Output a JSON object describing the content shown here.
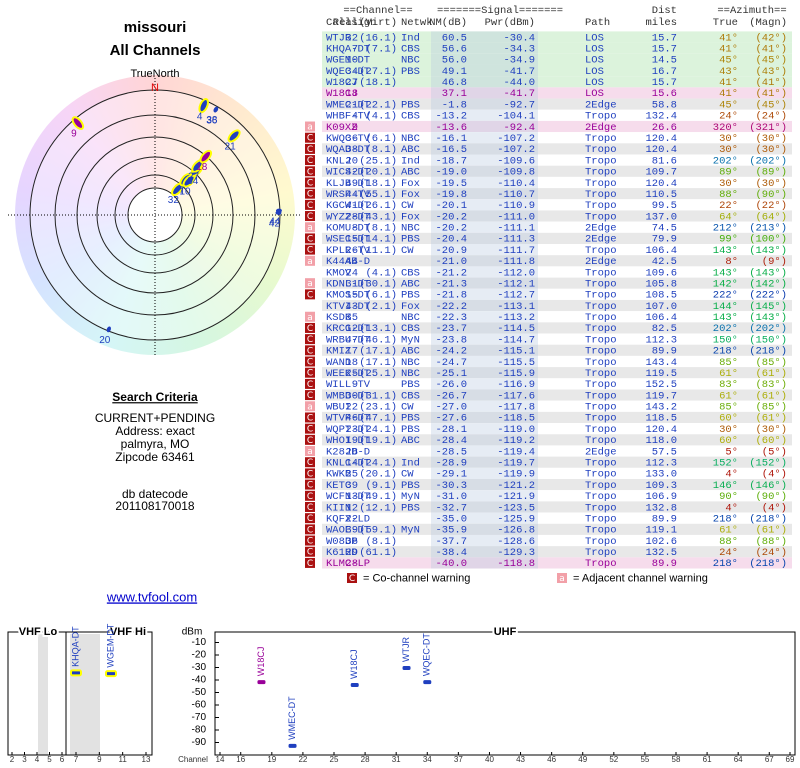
{
  "header": {
    "title": "missouri",
    "subtitle": "All Channels"
  },
  "search": {
    "title": "Search Criteria",
    "lines": [
      "CURRENT+PENDING",
      "Address: exact",
      "palmyra, MO",
      "Zipcode 63461"
    ],
    "datecode_label": "db datecode",
    "datecode": "201108170018"
  },
  "link": "www.tvfool.com",
  "table": {
    "group_headers": {
      "channel": "==Channel==",
      "signal": "=======Signal=======",
      "dist": "Dist",
      "azimuth": "==Azimuth=="
    },
    "columns": [
      "Callsign",
      "Real",
      "(Virt)",
      "Netwk",
      "NM(dB)",
      "Pwr(dBm)",
      "Path",
      "miles",
      "True",
      "(Magn)"
    ],
    "color": "#1f3fbf",
    "rows": [
      {
        "callsign": "WTJR",
        "real": "32",
        "virt": "(16.1)",
        "netwk": "Ind",
        "nm": "60.5",
        "pwr": "-30.4",
        "path": "LOS",
        "dist": "15.7",
        "true": "41°",
        "magn": "(42°)"
      },
      {
        "callsign": "KHQA-DT",
        "real": "7",
        "virt": "(7.1)",
        "netwk": "CBS",
        "nm": "56.6",
        "pwr": "-34.3",
        "path": "LOS",
        "dist": "15.7",
        "true": "41°",
        "magn": "(41°)"
      },
      {
        "callsign": "WGEM-DT",
        "real": "10",
        "netwk": "NBC",
        "nm": "56.0",
        "pwr": "-34.9",
        "path": "LOS",
        "dist": "14.5",
        "true": "45°",
        "magn": "(45°)"
      },
      {
        "callsign": "WQEC-DT",
        "real": "34",
        "virt": "(27.1)",
        "netwk": "PBS",
        "nm": "49.1",
        "pwr": "-41.7",
        "path": "LOS",
        "dist": "16.7",
        "true": "43°",
        "magn": "(43°)"
      },
      {
        "callsign": "W18CJ",
        "real": "27",
        "virt": "(18.1)",
        "nm": "46.8",
        "pwr": "-44.0",
        "path": "LOS",
        "dist": "15.7",
        "true": "41°",
        "magn": "(41°)"
      },
      {
        "callsign": "W18CJ",
        "real": "18",
        "nm": "37.1",
        "pwr": "-41.7",
        "path": "LOS",
        "dist": "15.6",
        "true": "41°",
        "magn": "(41°)",
        "color": "#990099"
      },
      {
        "callsign": "WMEC-DT",
        "real": "21",
        "virt": "(22.1)",
        "netwk": "PBS",
        "nm": "-1.8",
        "pwr": "-92.7",
        "path": "2Edge",
        "dist": "58.8",
        "true": "45°",
        "magn": "(45°)"
      },
      {
        "callsign": "WHBF-TV",
        "real": "4",
        "virt": "(4.1)",
        "netwk": "CBS",
        "nm": "-13.2",
        "pwr": "-104.1",
        "path": "Tropo",
        "dist": "132.4",
        "true": "24°",
        "magn": "(24°)"
      },
      {
        "callsign": "K09XZ",
        "real": "9",
        "nm": "-13.6",
        "pwr": "-92.4",
        "path": "2Edge",
        "dist": "26.6",
        "true": "320°",
        "magn": "(321°)",
        "warn": "a",
        "color": "#990099"
      },
      {
        "callsign": "KWQC-TV",
        "real": "36",
        "virt": "(6.1)",
        "netwk": "NBC",
        "nm": "-16.1",
        "pwr": "-107.2",
        "path": "Tropo",
        "dist": "120.4",
        "true": "30°",
        "magn": "(30°)",
        "warn": "C"
      },
      {
        "callsign": "WQAD-DT",
        "real": "38",
        "virt": "(8.1)",
        "netwk": "ABC",
        "nm": "-16.5",
        "pwr": "-107.2",
        "path": "Tropo",
        "dist": "120.4",
        "true": "30°",
        "magn": "(30°)",
        "warn": "C"
      },
      {
        "callsign": "KNLJ",
        "real": "20",
        "virt": "(25.1)",
        "netwk": "Ind",
        "nm": "-18.7",
        "pwr": "-109.6",
        "path": "Tropo",
        "dist": "81.6",
        "true": "202°",
        "magn": "(202°)",
        "warn": "C"
      },
      {
        "callsign": "WICS-DT",
        "real": "42",
        "virt": "(20.1)",
        "netwk": "ABC",
        "nm": "-19.0",
        "pwr": "-109.8",
        "path": "Tropo",
        "dist": "109.7",
        "true": "89°",
        "magn": "(89°)",
        "warn": "C"
      },
      {
        "callsign": "KLJB-DT",
        "real": "49",
        "virt": "(18.1)",
        "netwk": "Fox",
        "nm": "-19.5",
        "pwr": "-110.4",
        "path": "Tropo",
        "dist": "120.4",
        "true": "30°",
        "magn": "(30°)",
        "warn": "C"
      },
      {
        "callsign": "WRSP-TV",
        "real": "44",
        "virt": "(55.1)",
        "netwk": "Fox",
        "nm": "-19.8",
        "pwr": "-110.7",
        "path": "Tropo",
        "dist": "110.5",
        "true": "88°",
        "magn": "(90°)",
        "warn": "C"
      },
      {
        "callsign": "KGCW-DT",
        "real": "41",
        "virt": "(26.1)",
        "netwk": "CW",
        "nm": "-20.1",
        "pwr": "-110.9",
        "path": "Tropo",
        "dist": "99.5",
        "true": "22°",
        "magn": "(22°)",
        "warn": "C"
      },
      {
        "callsign": "WYZZ-DT",
        "real": "28",
        "virt": "(43.1)",
        "netwk": "Fox",
        "nm": "-20.2",
        "pwr": "-111.0",
        "path": "Tropo",
        "dist": "137.0",
        "true": "64°",
        "magn": "(64°)",
        "warn": "C"
      },
      {
        "callsign": "KOMU-DT",
        "real": "8",
        "virt": "(8.1)",
        "netwk": "NBC",
        "nm": "-20.2",
        "pwr": "-111.1",
        "path": "2Edge",
        "dist": "74.5",
        "true": "212°",
        "magn": "(213°)",
        "warn": "a"
      },
      {
        "callsign": "WSEC-DT",
        "real": "15",
        "virt": "(14.1)",
        "netwk": "PBS",
        "nm": "-20.4",
        "pwr": "-111.3",
        "path": "2Edge",
        "dist": "79.9",
        "true": "99°",
        "magn": "(100°)",
        "warn": "C"
      },
      {
        "callsign": "KPLR-TV",
        "real": "26",
        "virt": "(11.1)",
        "netwk": "CW",
        "nm": "-20.9",
        "pwr": "-111.7",
        "path": "Tropo",
        "dist": "106.4",
        "true": "143°",
        "magn": "(143°)",
        "warn": "C"
      },
      {
        "callsign": "K44AB-D",
        "real": "44",
        "nm": "-21.0",
        "pwr": "-111.8",
        "path": "2Edge",
        "dist": "42.5",
        "true": "8°",
        "magn": "(9°)",
        "warn": "a"
      },
      {
        "callsign": "KMOV",
        "real": "24",
        "virt": "(4.1)",
        "netwk": "CBS",
        "nm": "-21.2",
        "pwr": "-112.0",
        "path": "Tropo",
        "dist": "109.6",
        "true": "143°",
        "magn": "(143°)"
      },
      {
        "callsign": "KDNL-DT",
        "real": "31",
        "virt": "(30.1)",
        "netwk": "ABC",
        "nm": "-21.3",
        "pwr": "-112.1",
        "path": "Tropo",
        "dist": "105.8",
        "true": "142°",
        "magn": "(142°)",
        "warn": "a"
      },
      {
        "callsign": "KMOS-DT",
        "real": "15",
        "virt": "(6.1)",
        "netwk": "PBS",
        "nm": "-21.8",
        "pwr": "-112.7",
        "path": "Tropo",
        "dist": "108.5",
        "true": "222°",
        "magn": "(222°)",
        "warn": "C"
      },
      {
        "callsign": "KTVI-DT",
        "real": "43",
        "virt": "(2.1)",
        "netwk": "Fox",
        "nm": "-22.2",
        "pwr": "-113.1",
        "path": "Tropo",
        "dist": "107.0",
        "true": "144°",
        "magn": "(145°)"
      },
      {
        "callsign": "KSDK",
        "real": "35",
        "netwk": "NBC",
        "nm": "-22.3",
        "pwr": "-113.2",
        "path": "Tropo",
        "dist": "106.4",
        "true": "143°",
        "magn": "(143°)",
        "warn": "a"
      },
      {
        "callsign": "KRCG-DT",
        "real": "12",
        "virt": "(13.1)",
        "netwk": "CBS",
        "nm": "-23.7",
        "pwr": "-114.5",
        "path": "Tropo",
        "dist": "82.5",
        "true": "202°",
        "magn": "(202°)",
        "warn": "C"
      },
      {
        "callsign": "WRBU-DT",
        "real": "47",
        "virt": "(46.1)",
        "netwk": "MyN",
        "nm": "-23.8",
        "pwr": "-114.7",
        "path": "Tropo",
        "dist": "112.3",
        "true": "150°",
        "magn": "(150°)",
        "warn": "C"
      },
      {
        "callsign": "KMIZ",
        "real": "17",
        "virt": "(17.1)",
        "netwk": "ABC",
        "nm": "-24.2",
        "pwr": "-115.1",
        "path": "Tropo",
        "dist": "89.9",
        "true": "218°",
        "magn": "(218°)",
        "warn": "C"
      },
      {
        "callsign": "WAND",
        "real": "18",
        "virt": "(17.1)",
        "netwk": "NBC",
        "nm": "-24.7",
        "pwr": "-115.5",
        "path": "Tropo",
        "dist": "143.4",
        "true": "85°",
        "magn": "(85°)",
        "warn": "C"
      },
      {
        "callsign": "WEEK-DT",
        "real": "25",
        "virt": "(25.1)",
        "netwk": "NBC",
        "nm": "-25.1",
        "pwr": "-115.9",
        "path": "Tropo",
        "dist": "119.5",
        "true": "61°",
        "magn": "(61°)",
        "warn": "C"
      },
      {
        "callsign": "WILL-TV",
        "real": "9",
        "netwk": "PBS",
        "nm": "-26.0",
        "pwr": "-116.9",
        "path": "Tropo",
        "dist": "152.5",
        "true": "83°",
        "magn": "(83°)",
        "warn": "C"
      },
      {
        "callsign": "WMBD-DT",
        "real": "30",
        "virt": "(31.1)",
        "netwk": "CBS",
        "nm": "-26.7",
        "pwr": "-117.6",
        "path": "Tropo",
        "dist": "119.7",
        "true": "61°",
        "magn": "(61°)",
        "warn": "C"
      },
      {
        "callsign": "WBUI",
        "real": "22",
        "virt": "(23.1)",
        "netwk": "CW",
        "nm": "-27.0",
        "pwr": "-117.8",
        "path": "Tropo",
        "dist": "143.2",
        "true": "85°",
        "magn": "(85°)",
        "warn": "a"
      },
      {
        "callsign": "WTVP-DT",
        "real": "46",
        "virt": "(47.1)",
        "netwk": "PBS",
        "nm": "-27.6",
        "pwr": "-118.5",
        "path": "Tropo",
        "dist": "118.5",
        "true": "60°",
        "magn": "(61°)",
        "warn": "C"
      },
      {
        "callsign": "WQPT-DT",
        "real": "23",
        "virt": "(24.1)",
        "netwk": "PBS",
        "nm": "-28.1",
        "pwr": "-119.0",
        "path": "Tropo",
        "dist": "120.4",
        "true": "30°",
        "magn": "(30°)",
        "warn": "C"
      },
      {
        "callsign": "WHOI-DT",
        "real": "19",
        "virt": "(19.1)",
        "netwk": "ABC",
        "nm": "-28.4",
        "pwr": "-119.2",
        "path": "Tropo",
        "dist": "118.0",
        "true": "60°",
        "magn": "(60°)",
        "warn": "C"
      },
      {
        "callsign": "K28JD-D",
        "real": "28",
        "nm": "-28.5",
        "pwr": "-119.4",
        "path": "2Edge",
        "dist": "57.5",
        "true": "5°",
        "magn": "(5°)",
        "warn": "a"
      },
      {
        "callsign": "KNLC-DT",
        "real": "14",
        "virt": "(24.1)",
        "netwk": "Ind",
        "nm": "-28.9",
        "pwr": "-119.7",
        "path": "Tropo",
        "dist": "112.3",
        "true": "152°",
        "magn": "(152°)",
        "warn": "C"
      },
      {
        "callsign": "KWKB",
        "real": "25",
        "virt": "(20.1)",
        "netwk": "CW",
        "nm": "-29.1",
        "pwr": "-119.9",
        "path": "Tropo",
        "dist": "133.0",
        "true": "4°",
        "magn": "(4°)",
        "warn": "C"
      },
      {
        "callsign": "KETC",
        "real": "39",
        "virt": "(9.1)",
        "netwk": "PBS",
        "nm": "-30.3",
        "pwr": "-121.2",
        "path": "Tropo",
        "dist": "109.3",
        "true": "146°",
        "magn": "(146°)",
        "warn": "C"
      },
      {
        "callsign": "WCFN-DT",
        "real": "13",
        "virt": "(49.1)",
        "netwk": "MyN",
        "nm": "-31.0",
        "pwr": "-121.9",
        "path": "Tropo",
        "dist": "106.9",
        "true": "90°",
        "magn": "(90°)",
        "warn": "C"
      },
      {
        "callsign": "KIIN",
        "real": "12",
        "virt": "(12.1)",
        "netwk": "PBS",
        "nm": "-32.7",
        "pwr": "-123.5",
        "path": "Tropo",
        "dist": "132.8",
        "true": "4°",
        "magn": "(4°)",
        "warn": "C"
      },
      {
        "callsign": "KQFX-LD",
        "real": "22",
        "nm": "-35.0",
        "pwr": "-125.9",
        "path": "Tropo",
        "dist": "89.9",
        "true": "218°",
        "magn": "(218°)",
        "warn": "C"
      },
      {
        "callsign": "WAOE-DT",
        "real": "39",
        "virt": "(59.1)",
        "netwk": "MyN",
        "nm": "-35.9",
        "pwr": "-126.8",
        "path": "Tropo",
        "dist": "119.1",
        "true": "61°",
        "magn": "(61°)",
        "warn": "C"
      },
      {
        "callsign": "W08DP",
        "real": "36",
        "virt": "(8.1)",
        "nm": "-37.7",
        "pwr": "-128.6",
        "path": "Tropo",
        "dist": "102.6",
        "true": "88°",
        "magn": "(88°)",
        "warn": "C"
      },
      {
        "callsign": "K61HD",
        "real": "29",
        "virt": "(61.1)",
        "nm": "-38.4",
        "pwr": "-129.3",
        "path": "Tropo",
        "dist": "132.5",
        "true": "24°",
        "magn": "(24°)",
        "warn": "C"
      },
      {
        "callsign": "KLMC-LP",
        "real": "28",
        "nm": "-40.0",
        "pwr": "-118.8",
        "path": "Tropo",
        "dist": "89.9",
        "true": "218°",
        "magn": "(218°)",
        "warn": "C",
        "color": "#990099"
      }
    ]
  },
  "legend": [
    {
      "icon": "C",
      "text": "= Co-channel warning"
    },
    {
      "icon": "a",
      "text": "= Adjacent channel warning"
    }
  ],
  "chart_data": [
    {
      "type": "polar",
      "title": "TrueNorth",
      "north": "N",
      "points": [
        {
          "label": "32",
          "azimuth": 41,
          "nm": 60.5,
          "color": "#1f3fbf",
          "outline": "#ffff00"
        },
        {
          "label": "7",
          "azimuth": 41,
          "nm": 56.6,
          "color": "#1f3fbf",
          "outline": "#ffff00"
        },
        {
          "label": "10",
          "azimuth": 45,
          "nm": 56.0,
          "color": "#1f3fbf",
          "outline": "#ffff00"
        },
        {
          "label": "34",
          "azimuth": 43,
          "nm": 49.1,
          "color": "#1f3fbf",
          "outline": "#ffff00"
        },
        {
          "label": "27",
          "azimuth": 41,
          "nm": 46.8,
          "color": "#1f3fbf",
          "outline": "#ffff00"
        },
        {
          "label": "18",
          "azimuth": 41,
          "nm": 37.1,
          "color": "#990099",
          "outline": "#ffff00"
        },
        {
          "label": "21",
          "azimuth": 45,
          "nm": -1.8,
          "color": "#1f3fbf",
          "outline": "#ffff00"
        },
        {
          "label": "4",
          "azimuth": 24,
          "nm": -13.2,
          "color": "#1f3fbf",
          "outline": "#ffff00"
        },
        {
          "label": "9",
          "azimuth": 320,
          "nm": -13.6,
          "color": "#990099",
          "outline": "#ffff00"
        },
        {
          "label": "36",
          "azimuth": 30,
          "nm": -16.1,
          "color": "#1f3fbf"
        },
        {
          "label": "38",
          "azimuth": 30,
          "nm": -16.5,
          "color": "#1f3fbf"
        },
        {
          "label": "20",
          "azimuth": 202,
          "nm": -18.7,
          "color": "#1f3fbf"
        },
        {
          "label": "42",
          "azimuth": 89,
          "nm": -19.0,
          "color": "#1f3fbf"
        },
        {
          "label": "44",
          "azimuth": 88,
          "nm": -19.8,
          "color": "#1f3fbf"
        }
      ]
    },
    {
      "type": "spectrum",
      "ylabel": "dBm",
      "xlabel": "Channel",
      "ylim": [
        -100,
        0
      ],
      "yticks": [
        -10,
        -20,
        -30,
        -40,
        -50,
        -60,
        -70,
        -80,
        -90
      ],
      "panels": [
        {
          "title": "VHF Lo",
          "xlim": [
            2,
            6
          ],
          "xticks": [
            2,
            3,
            4,
            5,
            6
          ]
        },
        {
          "title": "VHF Hi",
          "xlim": [
            7,
            13
          ],
          "xticks": [
            7,
            9,
            11,
            13
          ]
        },
        {
          "title": "UHF",
          "xlim": [
            14,
            69
          ],
          "xticks": [
            14,
            16,
            19,
            22,
            25,
            28,
            31,
            34,
            37,
            40,
            43,
            46,
            49,
            52,
            55,
            58,
            61,
            64,
            67,
            69
          ]
        }
      ],
      "stations": [
        {
          "name": "KHQA-DT",
          "channel": 7,
          "dbm": -34.3,
          "color": "#1f3fbf",
          "outline": "#ffff00"
        },
        {
          "name": "WGEM-DT",
          "channel": 10,
          "dbm": -34.9,
          "color": "#1f3fbf",
          "outline": "#ffff00"
        },
        {
          "name": "W18CJ",
          "channel": 18,
          "dbm": -41.7,
          "color": "#990099"
        },
        {
          "name": "WMEC-DT",
          "channel": 21,
          "dbm": -92.7,
          "color": "#1f3fbf"
        },
        {
          "name": "W18CJ",
          "channel": 27,
          "dbm": -44.0,
          "color": "#1f3fbf"
        },
        {
          "name": "WTJR",
          "channel": 32,
          "dbm": -30.4,
          "color": "#1f3fbf"
        },
        {
          "name": "WQEC-DT",
          "channel": 34,
          "dbm": -41.7,
          "color": "#1f3fbf"
        }
      ]
    }
  ]
}
